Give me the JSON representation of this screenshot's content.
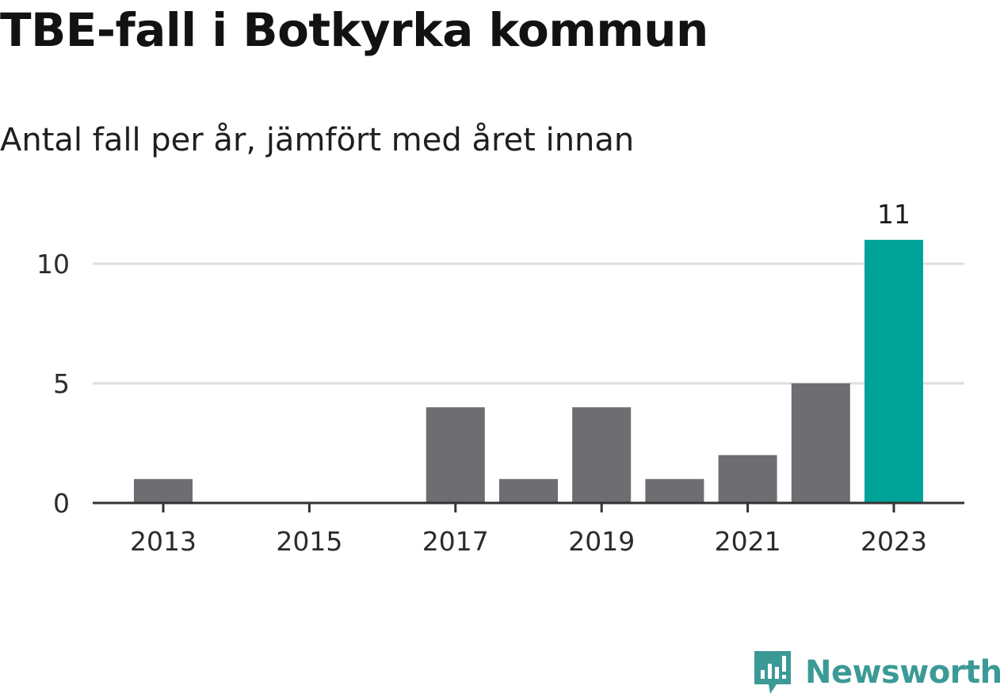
{
  "header": {
    "title": "TBE-fall i Botkyrka kommun",
    "subtitle": "Antal fall per år, jämfört med året innan"
  },
  "colors": {
    "bar": "#6e6d72",
    "highlight": "#00a398",
    "grid": "#dedede",
    "axis": "#333333",
    "brand": "#3c9a96"
  },
  "chart_data": {
    "type": "bar",
    "title": "TBE-fall i Botkyrka kommun",
    "subtitle": "Antal fall per år, jämfört med året innan",
    "xlabel": "",
    "ylabel": "",
    "categories": [
      "2013",
      "2014",
      "2015",
      "2016",
      "2017",
      "2018",
      "2019",
      "2020",
      "2021",
      "2022",
      "2023"
    ],
    "values": [
      1,
      0,
      0,
      0,
      4,
      1,
      4,
      1,
      2,
      5,
      11
    ],
    "highlight_index": 10,
    "value_labels": [
      {
        "index": 10,
        "text": "11"
      }
    ],
    "x_tick_labels": [
      "2013",
      "2015",
      "2017",
      "2019",
      "2021",
      "2023"
    ],
    "y_ticks": [
      0,
      5,
      10
    ],
    "ylim": [
      0,
      11
    ],
    "grid": "horizontal",
    "legend": "none"
  },
  "brand": {
    "name": "Newsworthy",
    "logo_icon": "newsworthy-logo-icon"
  }
}
